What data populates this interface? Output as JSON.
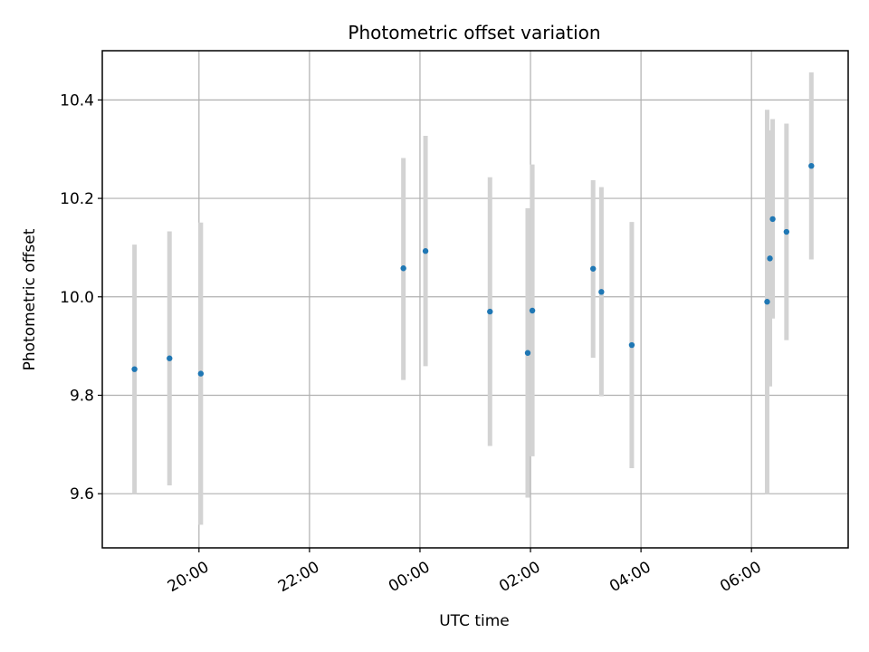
{
  "chart_data": {
    "type": "scatter",
    "title": "Photometric offset variation",
    "xlabel": "UTC time",
    "ylabel": "Photometric offset",
    "x_axis": "time",
    "xlim": [
      "18:15",
      "07:45"
    ],
    "ylim": [
      9.49,
      10.5
    ],
    "grid": true,
    "x_ticks": [
      "20:00",
      "22:00",
      "00:00",
      "02:00",
      "04:00",
      "06:00"
    ],
    "y_ticks": [
      9.6,
      9.8,
      10.0,
      10.2,
      10.4
    ],
    "y_tick_labels": [
      "9.6",
      "9.8",
      "10.0",
      "10.2",
      "10.4"
    ],
    "marker_color": "#1f77b4",
    "errorbar_color": "#d3d3d3",
    "points": [
      {
        "time": "18:50",
        "y": 9.853,
        "ylow": 9.6,
        "yhigh": 10.106
      },
      {
        "time": "19:28",
        "y": 9.875,
        "ylow": 9.617,
        "yhigh": 10.133
      },
      {
        "time": "20:02",
        "y": 9.844,
        "ylow": 9.537,
        "yhigh": 10.151
      },
      {
        "time": "23:42",
        "y": 10.058,
        "ylow": 9.831,
        "yhigh": 10.282
      },
      {
        "time": "00:06",
        "y": 10.093,
        "ylow": 9.859,
        "yhigh": 10.327
      },
      {
        "time": "01:16",
        "y": 9.97,
        "ylow": 9.697,
        "yhigh": 10.243
      },
      {
        "time": "01:57",
        "y": 9.886,
        "ylow": 9.592,
        "yhigh": 10.18
      },
      {
        "time": "02:02",
        "y": 9.972,
        "ylow": 9.676,
        "yhigh": 10.269
      },
      {
        "time": "03:08",
        "y": 10.057,
        "ylow": 9.876,
        "yhigh": 10.237
      },
      {
        "time": "03:17",
        "y": 10.01,
        "ylow": 9.798,
        "yhigh": 10.223
      },
      {
        "time": "03:50",
        "y": 9.902,
        "ylow": 9.652,
        "yhigh": 10.152
      },
      {
        "time": "06:17",
        "y": 9.99,
        "ylow": 9.6,
        "yhigh": 10.38
      },
      {
        "time": "06:20",
        "y": 10.078,
        "ylow": 9.818,
        "yhigh": 10.338
      },
      {
        "time": "06:23",
        "y": 10.158,
        "ylow": 9.956,
        "yhigh": 10.361
      },
      {
        "time": "06:38",
        "y": 10.132,
        "ylow": 9.912,
        "yhigh": 10.352
      },
      {
        "time": "07:05",
        "y": 10.266,
        "ylow": 10.076,
        "yhigh": 10.456
      }
    ]
  }
}
